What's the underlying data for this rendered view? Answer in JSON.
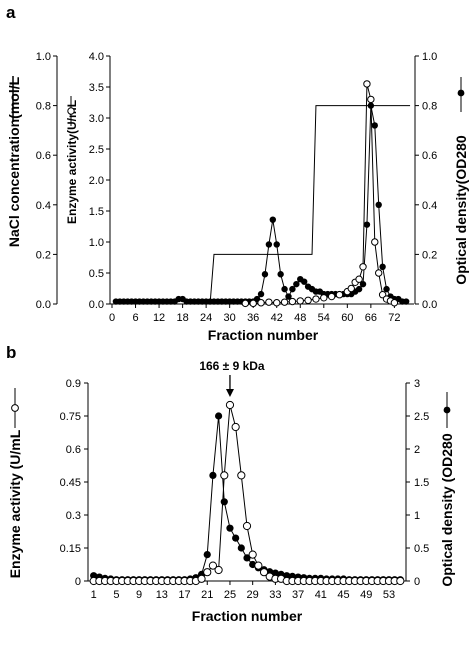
{
  "chart_data": [
    {
      "panel": "a",
      "type": "line",
      "xlabel": "Fraction number",
      "x_ticks": [
        0,
        6,
        12,
        18,
        24,
        30,
        36,
        42,
        48,
        54,
        60,
        66,
        72
      ],
      "x_range": [
        0,
        77
      ],
      "axes": [
        {
          "id": "nacl",
          "label": "NaCl concentration(mol/L",
          "range": [
            0,
            1.0
          ],
          "ticks": [
            "0.0",
            "0.2",
            "0.4",
            "0.6",
            "0.8",
            "1.0"
          ]
        },
        {
          "id": "enzyme",
          "label": "Enzyme activity(U/mL",
          "range": [
            0,
            4.0
          ],
          "ticks": [
            "0.0",
            "0.5",
            "1.0",
            "1.5",
            "2.0",
            "2.5",
            "3.0",
            "3.5",
            "4.0"
          ]
        },
        {
          "id": "od",
          "label": "Optical density(OD280",
          "range": [
            0,
            1.0
          ],
          "ticks": [
            "0.0",
            "0.2",
            "0.4",
            "0.6",
            "0.8",
            "1.0"
          ]
        }
      ],
      "series": [
        {
          "axis": "od",
          "marker": "filled-circle",
          "x": [
            1,
            2,
            3,
            4,
            5,
            6,
            7,
            8,
            9,
            10,
            11,
            12,
            13,
            14,
            15,
            16,
            17,
            18,
            19,
            20,
            21,
            22,
            23,
            24,
            25,
            26,
            27,
            28,
            29,
            30,
            31,
            32,
            33,
            34,
            35,
            36,
            37,
            38,
            39,
            40,
            41,
            42,
            43,
            44,
            45,
            46,
            47,
            48,
            49,
            50,
            51,
            52,
            53,
            54,
            55,
            56,
            57,
            58,
            59,
            60,
            61,
            62,
            63,
            64,
            65,
            66,
            67,
            68,
            69,
            70,
            71,
            72,
            73,
            74,
            75
          ],
          "values": [
            0.01,
            0.01,
            0.01,
            0.01,
            0.01,
            0.01,
            0.01,
            0.01,
            0.01,
            0.01,
            0.01,
            0.01,
            0.01,
            0.01,
            0.01,
            0.01,
            0.02,
            0.02,
            0.01,
            0.01,
            0.01,
            0.01,
            0.01,
            0.01,
            0.01,
            0.01,
            0.01,
            0.01,
            0.01,
            0.01,
            0.01,
            0.01,
            0.01,
            0.01,
            0.01,
            0.01,
            0.02,
            0.04,
            0.12,
            0.24,
            0.34,
            0.24,
            0.12,
            0.06,
            0.03,
            0.06,
            0.08,
            0.1,
            0.09,
            0.07,
            0.06,
            0.05,
            0.05,
            0.04,
            0.04,
            0.04,
            0.04,
            0.04,
            0.04,
            0.04,
            0.04,
            0.05,
            0.06,
            0.08,
            0.32,
            0.8,
            0.72,
            0.4,
            0.15,
            0.06,
            0.03,
            0.02,
            0.02,
            0.01,
            0.01
          ]
        },
        {
          "axis": "enzyme",
          "marker": "open-circle",
          "x": [
            34,
            36,
            38,
            40,
            42,
            44,
            46,
            48,
            50,
            52,
            54,
            56,
            58,
            60,
            61,
            62,
            63,
            64,
            65,
            66,
            67,
            68,
            69,
            70,
            71,
            72
          ],
          "values": [
            0.01,
            0.01,
            0.02,
            0.03,
            0.02,
            0.03,
            0.04,
            0.05,
            0.06,
            0.08,
            0.1,
            0.12,
            0.15,
            0.2,
            0.25,
            0.35,
            0.4,
            0.6,
            3.55,
            3.3,
            1.0,
            0.5,
            0.15,
            0.08,
            0.05,
            0.02
          ]
        },
        {
          "axis": "nacl",
          "marker": "none",
          "x": [
            0,
            25,
            26,
            51,
            52,
            76
          ],
          "values": [
            0,
            0,
            0.2,
            0.2,
            0.8,
            0.8
          ]
        }
      ]
    },
    {
      "panel": "b",
      "type": "line",
      "xlabel": "Fraction number",
      "x_ticks": [
        1,
        5,
        9,
        13,
        17,
        21,
        25,
        29,
        33,
        37,
        41,
        45,
        49,
        53
      ],
      "x_range": [
        0,
        56
      ],
      "annotation": "166 ± 9 kDa",
      "annotation_x": 25,
      "axes": [
        {
          "id": "enzyme",
          "label": "Enzyme activity (U/mL",
          "range": [
            0,
            0.9
          ],
          "ticks": [
            "0",
            "0.15",
            "0.3",
            "0.45",
            "0.6",
            "0.75",
            "0.9"
          ]
        },
        {
          "id": "od",
          "label": "Optical density (OD280",
          "range": [
            0,
            3
          ],
          "ticks": [
            "0",
            "0.5",
            "1",
            "1.5",
            "2",
            "2.5",
            "3"
          ]
        }
      ],
      "series": [
        {
          "axis": "od",
          "marker": "filled-circle",
          "x": [
            1,
            2,
            3,
            4,
            5,
            6,
            7,
            8,
            9,
            10,
            11,
            12,
            13,
            14,
            15,
            16,
            17,
            18,
            19,
            20,
            21,
            22,
            23,
            24,
            25,
            26,
            27,
            28,
            29,
            30,
            31,
            32,
            33,
            34,
            35,
            36,
            37,
            38,
            39,
            40,
            41,
            42,
            43,
            44,
            45,
            46,
            47,
            48,
            49,
            50,
            51,
            52,
            53,
            54,
            55
          ],
          "values": [
            0.08,
            0.06,
            0.04,
            0.03,
            0.02,
            0.02,
            0.02,
            0.02,
            0.02,
            0.02,
            0.02,
            0.02,
            0.02,
            0.02,
            0.02,
            0.02,
            0.02,
            0.03,
            0.05,
            0.1,
            0.4,
            1.6,
            2.5,
            1.2,
            0.8,
            0.65,
            0.5,
            0.35,
            0.25,
            0.2,
            0.17,
            0.14,
            0.12,
            0.1,
            0.08,
            0.07,
            0.06,
            0.05,
            0.04,
            0.04,
            0.04,
            0.03,
            0.03,
            0.03,
            0.03,
            0.02,
            0.02,
            0.02,
            0.02,
            0.02,
            0.02,
            0.02,
            0.02,
            0.02,
            0.02
          ]
        },
        {
          "axis": "enzyme",
          "marker": "open-circle",
          "x": [
            1,
            2,
            3,
            4,
            5,
            6,
            7,
            8,
            9,
            10,
            11,
            12,
            13,
            14,
            15,
            16,
            17,
            18,
            19,
            20,
            21,
            22,
            23,
            24,
            25,
            26,
            27,
            28,
            29,
            30,
            31,
            32,
            33,
            34,
            35,
            36,
            37,
            38,
            39,
            40,
            41,
            42,
            43,
            44,
            45,
            46,
            47,
            48,
            49,
            50,
            51,
            52,
            53,
            54,
            55
          ],
          "values": [
            0.0,
            0.0,
            0.0,
            0.0,
            0.0,
            0.0,
            0.0,
            0.0,
            0.0,
            0.0,
            0.0,
            0.0,
            0.0,
            0.0,
            0.0,
            0.0,
            0.0,
            0.0,
            0.0,
            0.01,
            0.04,
            0.07,
            0.05,
            0.48,
            0.8,
            0.7,
            0.48,
            0.25,
            0.12,
            0.07,
            0.04,
            0.02,
            0.01,
            0.01,
            0.0,
            0.0,
            0.0,
            0.0,
            0.0,
            0.0,
            0.0,
            0.0,
            0.0,
            0.0,
            0.0,
            0.0,
            0.0,
            0.0,
            0.0,
            0.0,
            0.0,
            0.0,
            0.0,
            0.0,
            0.0
          ]
        }
      ]
    }
  ]
}
